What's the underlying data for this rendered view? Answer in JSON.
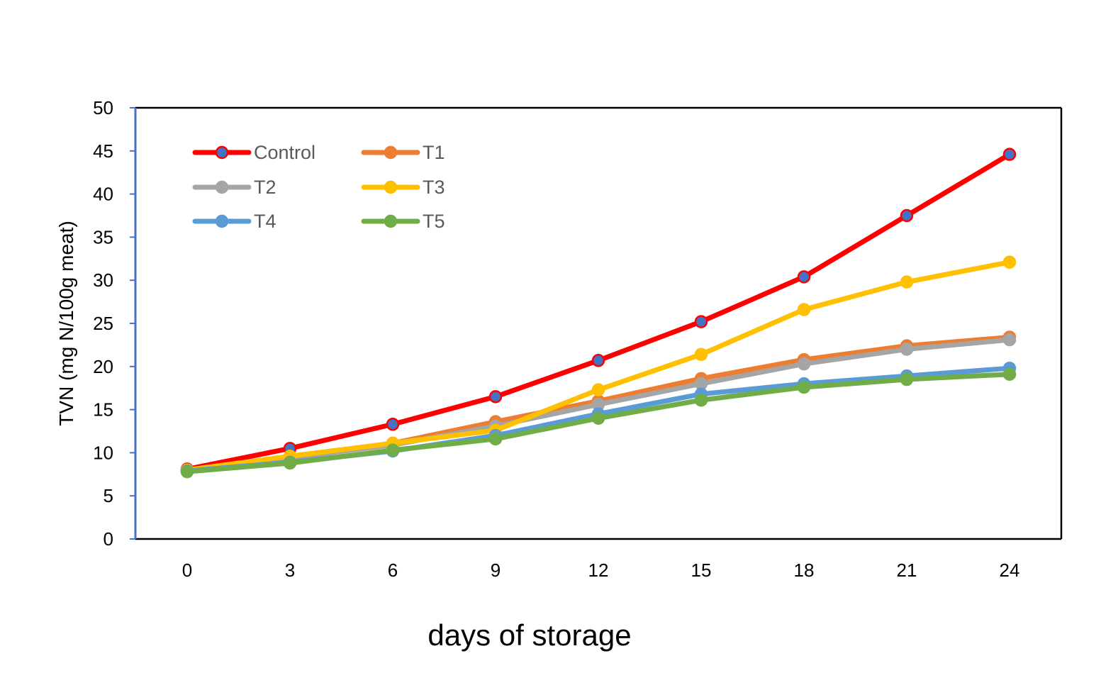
{
  "chart_data": {
    "type": "line",
    "xlabel": "days of storage",
    "ylabel": "TVN (mg N/100g meat)",
    "ylim": [
      0,
      50
    ],
    "y_ticks": [
      "0",
      "5",
      "10",
      "15",
      "20",
      "25",
      "30",
      "35",
      "40",
      "45",
      "50"
    ],
    "categories": [
      "0",
      "3",
      "6",
      "9",
      "12",
      "15",
      "18",
      "21",
      "24"
    ],
    "grid": false,
    "legend_position": "top-left",
    "series": [
      {
        "name": "Control",
        "color": "#FF0000",
        "marker_color": "#4472C4",
        "values": [
          8.1,
          10.5,
          13.3,
          16.5,
          20.7,
          25.2,
          30.4,
          37.5,
          44.6
        ]
      },
      {
        "name": "T1",
        "color": "#ED7D31",
        "marker_color": "#ED7D31",
        "values": [
          8.0,
          9.5,
          11.1,
          13.6,
          16.0,
          18.6,
          20.8,
          22.4,
          23.4
        ]
      },
      {
        "name": "T2",
        "color": "#A5A5A5",
        "marker_color": "#A5A5A5",
        "values": [
          8.0,
          9.4,
          10.9,
          13.1,
          15.6,
          18.0,
          20.3,
          22.0,
          23.1
        ]
      },
      {
        "name": "T3",
        "color": "#FFC000",
        "marker_color": "#FFC000",
        "values": [
          8.0,
          9.6,
          11.1,
          12.6,
          17.3,
          21.4,
          26.6,
          29.8,
          32.1
        ]
      },
      {
        "name": "T4",
        "color": "#5B9BD5",
        "marker_color": "#5B9BD5",
        "values": [
          7.9,
          8.9,
          10.2,
          12.0,
          14.5,
          16.8,
          18.0,
          18.9,
          19.8
        ]
      },
      {
        "name": "T5",
        "color": "#70AD47",
        "marker_color": "#70AD47",
        "values": [
          7.8,
          8.8,
          10.3,
          11.6,
          14.0,
          16.1,
          17.6,
          18.5,
          19.1
        ]
      }
    ]
  }
}
